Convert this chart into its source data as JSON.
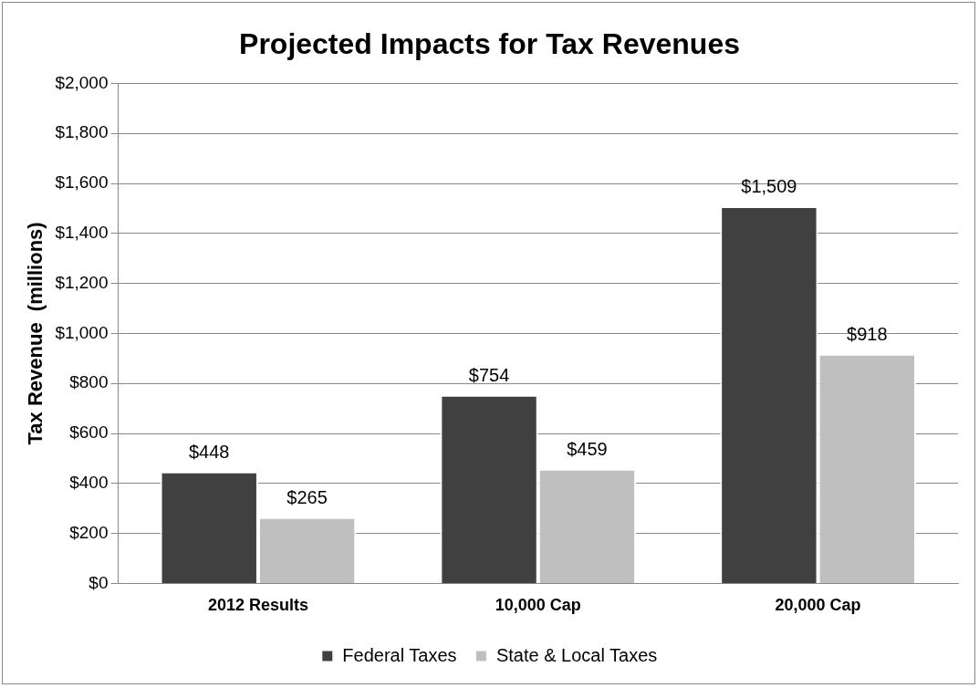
{
  "chart_data": {
    "type": "bar",
    "title": "Projected Impacts for Tax Revenues",
    "ylabel": "Tax Revenue  (millions)",
    "categories": [
      "2012 Results",
      "10,000 Cap",
      "20,000 Cap"
    ],
    "series": [
      {
        "name": "Federal Taxes",
        "color": "#404040",
        "values": [
          448,
          754,
          1509
        ],
        "value_labels": [
          "$448",
          "$754",
          "$1,509"
        ]
      },
      {
        "name": "State & Local Taxes",
        "color": "#bfbfbf",
        "values": [
          265,
          459,
          918
        ],
        "value_labels": [
          "$265",
          "$459",
          "$918"
        ]
      }
    ],
    "ylim": [
      0,
      2000
    ],
    "yticks": [
      {
        "value": 0,
        "label": "$0"
      },
      {
        "value": 200,
        "label": "$200"
      },
      {
        "value": 400,
        "label": "$400"
      },
      {
        "value": 600,
        "label": "$600"
      },
      {
        "value": 800,
        "label": "$800"
      },
      {
        "value": 1000,
        "label": "$1,000"
      },
      {
        "value": 1200,
        "label": "$1,200"
      },
      {
        "value": 1400,
        "label": "$1,400"
      },
      {
        "value": 1600,
        "label": "$1,600"
      },
      {
        "value": 1800,
        "label": "$1,800"
      },
      {
        "value": 2000,
        "label": "$2,000"
      }
    ],
    "grid": "y",
    "legend": "bottom"
  }
}
